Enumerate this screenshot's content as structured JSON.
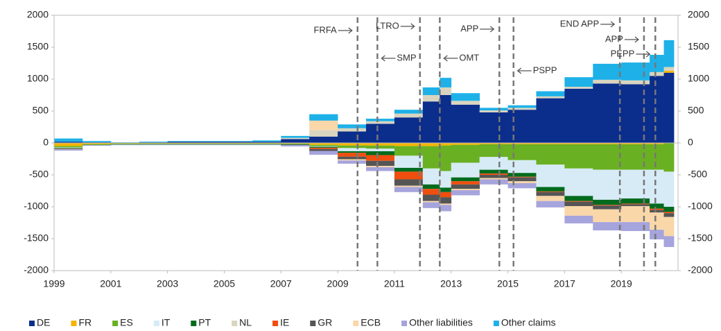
{
  "chart_data": {
    "type": "stacked_area",
    "x": [
      1999,
      2000,
      2001,
      2002,
      2003,
      2004,
      2005,
      2006,
      2007,
      2008,
      2009,
      2010,
      2011,
      2012,
      2012.6,
      2013,
      2014,
      2015,
      2016,
      2017,
      2018,
      2019,
      2020,
      2020.5
    ],
    "xlim": [
      1999,
      2021
    ],
    "xticks": [
      1999,
      2001,
      2003,
      2005,
      2007,
      2009,
      2011,
      2013,
      2015,
      2017,
      2019
    ],
    "ylim": [
      -2000,
      2000
    ],
    "yticks": [
      -2000,
      -1500,
      -1000,
      -500,
      0,
      500,
      1000,
      1500,
      2000
    ],
    "y2lim": [
      -2000,
      2000
    ],
    "y2ticks": [
      -2000,
      -1500,
      -1000,
      -500,
      0,
      500,
      1000,
      1500,
      2000
    ],
    "legend": "bottom",
    "series": [
      {
        "name": "DE",
        "color": "#0b2d8c",
        "values": [
          20,
          10,
          0,
          10,
          20,
          20,
          20,
          20,
          60,
          100,
          180,
          300,
          400,
          650,
          750,
          600,
          480,
          520,
          700,
          850,
          930,
          920,
          1050,
          1100
        ]
      },
      {
        "name": "FR",
        "color": "#f5b400",
        "values": [
          -50,
          -20,
          -10,
          -10,
          -10,
          -10,
          -10,
          -10,
          -10,
          -30,
          -40,
          -40,
          -50,
          -50,
          -40,
          -30,
          -20,
          -20,
          -20,
          -20,
          -20,
          -20,
          -20,
          30
        ]
      },
      {
        "name": "ES",
        "color": "#6ab023",
        "values": [
          -20,
          -10,
          -10,
          -10,
          -10,
          -10,
          -10,
          -10,
          -10,
          -20,
          -40,
          -50,
          -150,
          -350,
          -400,
          -280,
          -200,
          -250,
          -320,
          -380,
          -400,
          -400,
          -400,
          -450
        ]
      },
      {
        "name": "IT",
        "color": "#d6ebf6",
        "values": [
          -10,
          0,
          0,
          0,
          0,
          0,
          0,
          0,
          0,
          -10,
          -50,
          -40,
          -190,
          -250,
          -260,
          -230,
          -200,
          -200,
          -350,
          -430,
          -470,
          -450,
          -530,
          -550
        ]
      },
      {
        "name": "PT",
        "color": "#006b1d",
        "values": [
          -10,
          -5,
          -5,
          -5,
          -5,
          -5,
          -5,
          -5,
          -5,
          -15,
          -25,
          -60,
          -60,
          -70,
          -70,
          -60,
          -60,
          -60,
          -70,
          -80,
          -80,
          -80,
          -80,
          -80
        ]
      },
      {
        "name": "NL",
        "color": "#d9d4c0",
        "values": [
          0,
          0,
          0,
          0,
          0,
          0,
          0,
          0,
          20,
          100,
          50,
          40,
          60,
          100,
          120,
          60,
          30,
          30,
          30,
          30,
          60,
          60,
          60,
          60
        ]
      },
      {
        "name": "IE",
        "color": "#f04e0e",
        "values": [
          -5,
          0,
          0,
          0,
          0,
          0,
          0,
          0,
          0,
          -20,
          -60,
          -90,
          -120,
          -90,
          -80,
          -50,
          -20,
          -10,
          -10,
          -10,
          -10,
          -10,
          -20,
          -20
        ]
      },
      {
        "name": "GR",
        "color": "#555555",
        "values": [
          -5,
          0,
          0,
          0,
          0,
          0,
          0,
          0,
          -10,
          -30,
          -40,
          -80,
          -100,
          -100,
          -100,
          -70,
          -50,
          -60,
          -60,
          -70,
          -60,
          -30,
          -40,
          -60
        ]
      },
      {
        "name": "ECB",
        "color": "#f9d7a9",
        "values": [
          0,
          0,
          0,
          0,
          0,
          0,
          0,
          0,
          0,
          150,
          -20,
          -20,
          -20,
          -20,
          -20,
          -20,
          -20,
          -30,
          -80,
          -150,
          -200,
          -250,
          -270,
          -300
        ]
      },
      {
        "name": "Other liabilities",
        "color": "#a6a4dc",
        "values": [
          -20,
          -10,
          -10,
          -10,
          -10,
          -10,
          -10,
          -10,
          -20,
          -60,
          -50,
          -60,
          -80,
          -90,
          -100,
          -80,
          -80,
          -80,
          -100,
          -120,
          -130,
          -140,
          -150,
          -170
        ]
      },
      {
        "name": "Other claims",
        "color": "#1eb1e8",
        "values": [
          50,
          20,
          10,
          10,
          10,
          10,
          10,
          20,
          30,
          100,
          60,
          40,
          60,
          120,
          150,
          120,
          40,
          40,
          80,
          150,
          250,
          280,
          270,
          420
        ]
      }
    ],
    "annotations": [
      {
        "text": "FRFA",
        "x": 2009.7,
        "side": "left"
      },
      {
        "text": "SMP",
        "x": 2010.4,
        "side": "right"
      },
      {
        "text": "LTRO",
        "x": 2011.9,
        "side": "left"
      },
      {
        "text": "OMT",
        "x": 2012.6,
        "side": "right"
      },
      {
        "text": "APP",
        "x": 2014.7,
        "side": "left"
      },
      {
        "text": "PSPP",
        "x": 2015.2,
        "side": "right"
      },
      {
        "text": "END APP",
        "x": 2018.95,
        "side": "left"
      },
      {
        "text": "APP",
        "x": 2019.8,
        "side": "left"
      },
      {
        "text": "PEPP",
        "x": 2020.2,
        "side": "left"
      }
    ]
  }
}
